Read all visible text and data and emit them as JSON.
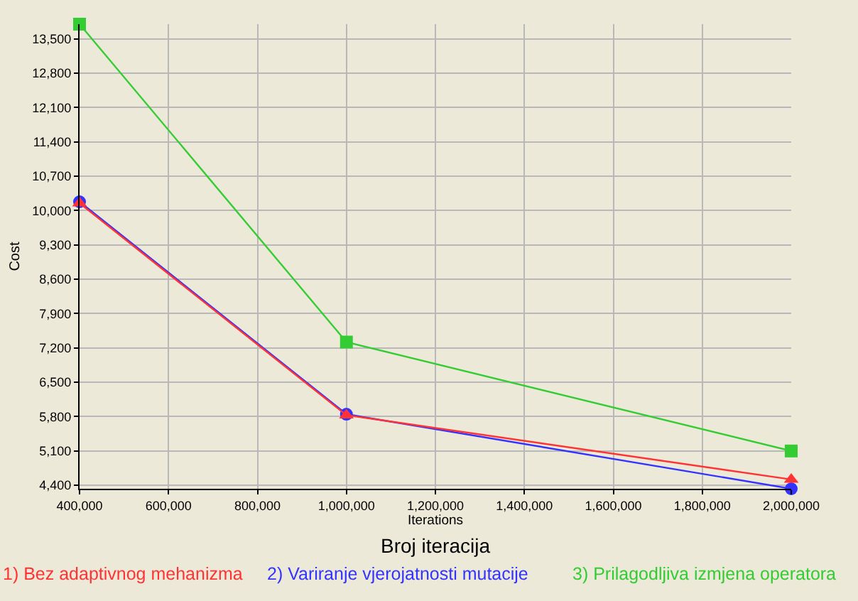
{
  "chart_data": {
    "type": "line",
    "title": "Broj iteracija",
    "xlabel": "Iterations",
    "ylabel": "Cost",
    "x": [
      400000,
      1000000,
      2000000
    ],
    "series": [
      {
        "name": "1) Bez adaptivnog mehanizma",
        "color": "#ff3333",
        "marker": "triangle",
        "values": [
          10150,
          5830,
          4520
        ]
      },
      {
        "name": "2) Variranje vjerojatnosti mutacije",
        "color": "#3333ff",
        "marker": "circle",
        "values": [
          10180,
          5850,
          4330
        ]
      },
      {
        "name": "3) Prilagodljiva izmjena operatora",
        "color": "#33cc33",
        "marker": "square",
        "values": [
          13800,
          7320,
          5100
        ]
      }
    ],
    "xlim": [
      400000,
      2000000
    ],
    "ylim": [
      4330,
      13800
    ],
    "xticks": [
      {
        "value": 400000,
        "label": "400,000"
      },
      {
        "value": 600000,
        "label": "600,000"
      },
      {
        "value": 800000,
        "label": "800,000"
      },
      {
        "value": 1000000,
        "label": "1,000,000"
      },
      {
        "value": 1200000,
        "label": "1,200,000"
      },
      {
        "value": 1400000,
        "label": "1,400,000"
      },
      {
        "value": 1600000,
        "label": "1,600,000"
      },
      {
        "value": 1800000,
        "label": "1,800,000"
      },
      {
        "value": 2000000,
        "label": "2,000,000"
      }
    ],
    "yticks": [
      {
        "value": 4400,
        "label": "4,400"
      },
      {
        "value": 5100,
        "label": "5,100"
      },
      {
        "value": 5800,
        "label": "5,800"
      },
      {
        "value": 6500,
        "label": "6,500"
      },
      {
        "value": 7200,
        "label": "7,200"
      },
      {
        "value": 7900,
        "label": "7,900"
      },
      {
        "value": 8600,
        "label": "8,600"
      },
      {
        "value": 9300,
        "label": "9,300"
      },
      {
        "value": 10000,
        "label": "10,000"
      },
      {
        "value": 10700,
        "label": "10,700"
      },
      {
        "value": 11400,
        "label": "11,400"
      },
      {
        "value": 12100,
        "label": "12,100"
      },
      {
        "value": 12800,
        "label": "12,800"
      },
      {
        "value": 13500,
        "label": "13,500"
      }
    ],
    "grid": true,
    "legend": "bottom",
    "line_style": "solid"
  }
}
